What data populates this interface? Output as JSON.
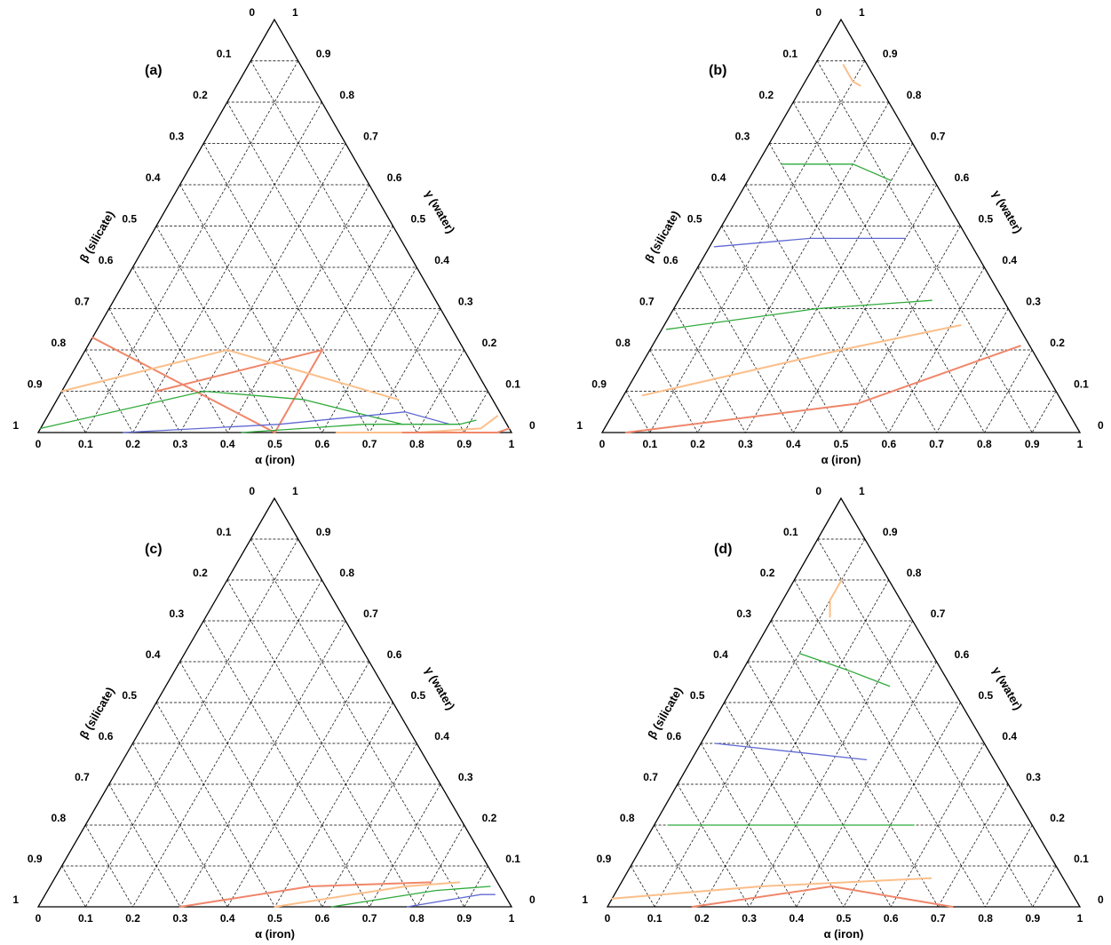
{
  "figure": {
    "axis_labels": {
      "alpha": "α (iron)",
      "beta": "β (silicate)",
      "gamma": "γ (water)"
    },
    "ticks": [
      "0",
      "0.1",
      "0.2",
      "0.3",
      "0.4",
      "0.5",
      "0.6",
      "0.7",
      "0.8",
      "0.9",
      "1"
    ],
    "colors": {
      "red": "#f0866a",
      "orange": "#fbbf8a",
      "green": "#2eaa3a",
      "blue": "#6069d2"
    }
  },
  "chart_data": [
    {
      "type": "ternary",
      "panel": "(a)",
      "axes": {
        "bottom": "α (iron)",
        "left": "β (silicate)",
        "right": "γ (water)"
      },
      "grid": true,
      "series": [
        {
          "color": "red",
          "points": [
            [
              0,
              0.77
            ],
            [
              0.5,
              0.5
            ],
            [
              0.5,
              0.4
            ],
            [
              0.5,
              0.3
            ],
            [
              0.2,
              0.7
            ]
          ]
        },
        {
          "color": "orange",
          "points": [
            [
              0,
              0.9
            ],
            [
              0.3,
              0.5
            ],
            [
              0.58,
              0.3
            ],
            [
              0.72,
              0.2
            ]
          ]
        },
        {
          "color": "green",
          "points": [
            [
              0,
              0.99
            ],
            [
              0.3,
              0.6
            ],
            [
              0.52,
              0.4
            ],
            [
              0.76,
              0.22
            ]
          ]
        },
        {
          "color": "blue",
          "points": [
            [
              0.18,
              0.82
            ],
            [
              0.5,
              0.48
            ],
            [
              0.75,
              0.2
            ],
            [
              0.86,
              0.12
            ]
          ]
        },
        {
          "color": "green",
          "points": [
            [
              0.43,
              0.57
            ],
            [
              0.68,
              0.3
            ],
            [
              0.88,
              0.1
            ],
            [
              0.91,
              0.06
            ]
          ]
        },
        {
          "color": "orange",
          "points": [
            [
              0.63,
              0.37
            ],
            [
              0.8,
              0.2
            ],
            [
              0.93,
              0.06
            ],
            [
              0.95,
              0.01
            ]
          ]
        },
        {
          "color": "red",
          "points": [
            [
              0.77,
              0.23
            ],
            [
              0.88,
              0.12
            ],
            [
              0.97,
              0.03
            ],
            [
              0.99,
              0.0
            ]
          ]
        }
      ]
    },
    {
      "type": "ternary",
      "panel": "(b)",
      "axes": {
        "bottom": "α (iron)",
        "left": "β (silicate)",
        "right": "γ (water)"
      },
      "grid": true,
      "series": [
        {
          "color": "orange",
          "points": [
            [
              0.06,
              0.05
            ],
            [
              0.1,
              0.05
            ],
            [
              0.12,
              0.04
            ]
          ]
        },
        {
          "color": "green",
          "points": [
            [
              0.05,
              0.3
            ],
            [
              0.2,
              0.15
            ],
            [
              0.3,
              0.09
            ]
          ]
        },
        {
          "color": "blue",
          "points": [
            [
              0.01,
              0.54
            ],
            [
              0.2,
              0.33
            ],
            [
              0.4,
              0.13
            ]
          ]
        },
        {
          "color": "green",
          "points": [
            [
              0.01,
              0.74
            ],
            [
              0.3,
              0.4
            ],
            [
              0.53,
              0.15
            ]
          ]
        },
        {
          "color": "orange",
          "points": [
            [
              0.04,
              0.87
            ],
            [
              0.4,
              0.4
            ],
            [
              0.62,
              0.12
            ]
          ]
        },
        {
          "color": "red",
          "points": [
            [
              0.05,
              0.95
            ],
            [
              0.5,
              0.43
            ],
            [
              0.77,
              0.02
            ]
          ]
        }
      ]
    },
    {
      "type": "ternary",
      "panel": "(c)",
      "axes": {
        "bottom": "α (iron)",
        "left": "β (silicate)",
        "right": "γ (water)"
      },
      "grid": true,
      "series": [
        {
          "color": "red",
          "points": [
            [
              0.3,
              0.7
            ],
            [
              0.55,
              0.4
            ],
            [
              0.8,
              0.14
            ]
          ]
        },
        {
          "color": "orange",
          "points": [
            [
              0.5,
              0.5
            ],
            [
              0.75,
              0.2
            ],
            [
              0.86,
              0.08
            ]
          ]
        },
        {
          "color": "green",
          "points": [
            [
              0.62,
              0.38
            ],
            [
              0.82,
              0.14
            ],
            [
              0.93,
              0.02
            ]
          ]
        },
        {
          "color": "blue",
          "points": [
            [
              0.78,
              0.22
            ],
            [
              0.92,
              0.05
            ],
            [
              0.95,
              0.02
            ]
          ]
        }
      ]
    },
    {
      "type": "ternary",
      "panel": "(d)",
      "axes": {
        "bottom": "α (iron)",
        "left": "β (silicate)",
        "right": "γ (water)"
      },
      "grid": true,
      "series": [
        {
          "color": "orange",
          "points": [
            [
              0.1,
              0.1
            ],
            [
              0.1,
              0.15
            ],
            [
              0.12,
              0.17
            ]
          ]
        },
        {
          "color": "green",
          "points": [
            [
              0.1,
              0.28
            ],
            [
              0.22,
              0.2
            ],
            [
              0.33,
              0.13
            ]
          ]
        },
        {
          "color": "blue",
          "points": [
            [
              0.03,
              0.57
            ],
            [
              0.2,
              0.42
            ],
            [
              0.37,
              0.27
            ]
          ]
        },
        {
          "color": "green",
          "points": [
            [
              0.03,
              0.77
            ],
            [
              0.3,
              0.5
            ],
            [
              0.55,
              0.25
            ]
          ]
        },
        {
          "color": "orange",
          "points": [
            [
              0.0,
              0.98
            ],
            [
              0.3,
              0.65
            ],
            [
              0.65,
              0.28
            ]
          ]
        },
        {
          "color": "red",
          "points": [
            [
              0.18,
              0.82
            ],
            [
              0.45,
              0.5
            ],
            [
              0.73,
              0.27
            ]
          ]
        }
      ]
    }
  ]
}
